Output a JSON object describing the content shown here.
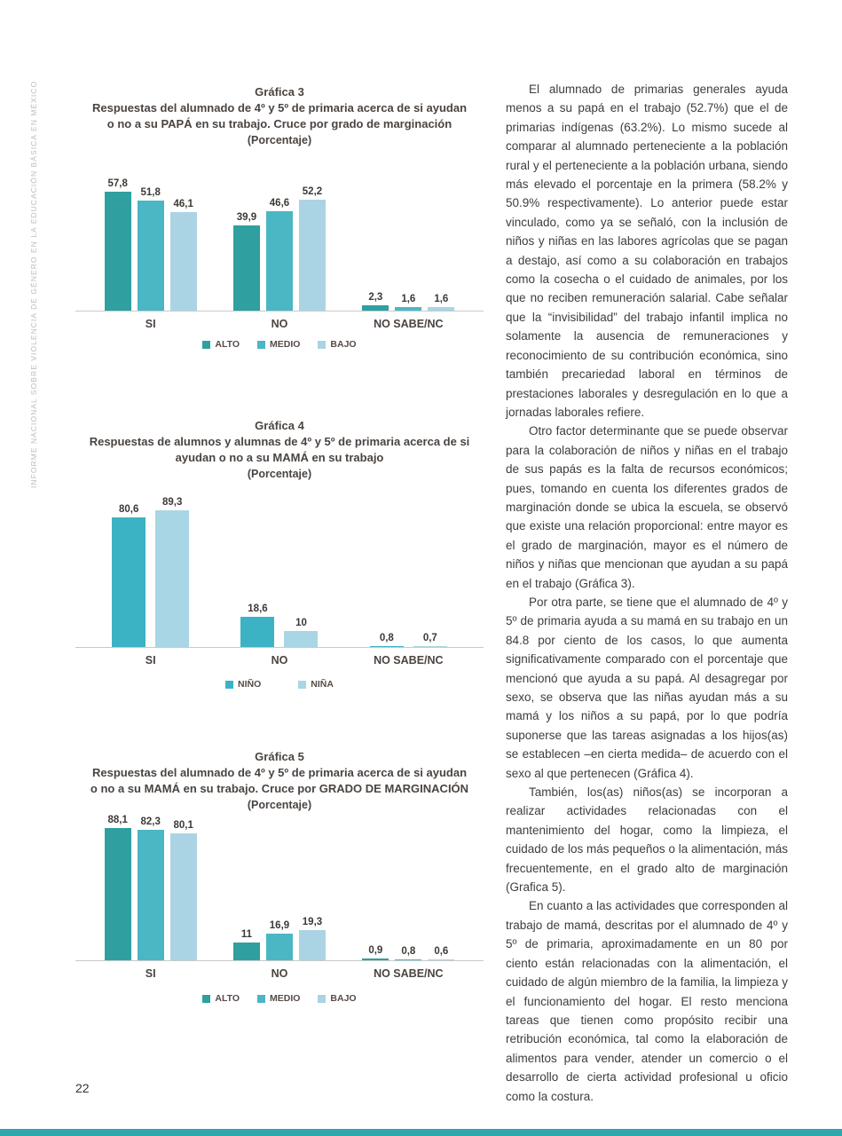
{
  "page": {
    "number": "22"
  },
  "sidebar": {
    "text": "INFORME NACIONAL SOBRE VIOLENCIA DE GÉNERO EN LA EDUCACIÓN BÁSICA EN MÉXICO"
  },
  "footer": {
    "bar_color": "#2fa8ad"
  },
  "chart_data": [
    {
      "type": "bar",
      "caption": "Gráfica 3",
      "title": "Respuestas del alumnado de 4º y 5º de primaria acerca de si ayudan o no a su PAPÁ en su trabajo. Cruce por grado de marginación",
      "subtitle": "(Porcentaje)",
      "categories": [
        "SI",
        "NO",
        "NO SABE/NC"
      ],
      "series": [
        {
          "name": "ALTO",
          "color": "#2f9fa0",
          "values": [
            57.8,
            39.9,
            2.3
          ],
          "labels": [
            "57,8",
            "39,9",
            "2,3"
          ]
        },
        {
          "name": "MEDIO",
          "color": "#4bb6c4",
          "values": [
            51.8,
            46.6,
            1.6
          ],
          "labels": [
            "51,8",
            "46,6",
            "1,6"
          ]
        },
        {
          "name": "BAJO",
          "color": "#aad4e4",
          "values": [
            46.1,
            52.2,
            1.6
          ],
          "labels": [
            "46,1",
            "52,2",
            "1,6"
          ]
        }
      ],
      "ylim": [
        0,
        62
      ],
      "grid": false,
      "legend_position": "bottom"
    },
    {
      "type": "bar",
      "caption": "Gráfica 4",
      "title": "Respuestas de alumnos y alumnas de 4º y 5º de primaria acerca de si ayudan o no a su MAMÁ en su trabajo",
      "subtitle": "(Porcentaje)",
      "categories": [
        "SI",
        "NO",
        "NO SABE/NC"
      ],
      "series": [
        {
          "name": "NIÑO",
          "color": "#3cb3c4",
          "values": [
            80.6,
            18.6,
            0.8
          ],
          "labels": [
            "80,6",
            "18,6",
            "0,8"
          ]
        },
        {
          "name": "NIÑA",
          "color": "#a8d6e4",
          "values": [
            89.3,
            10,
            0.7
          ],
          "labels": [
            "89,3",
            "10",
            "0,7"
          ]
        }
      ],
      "ylim": [
        0,
        93
      ],
      "grid": false,
      "legend_position": "bottom"
    },
    {
      "type": "bar",
      "caption": "Gráfica 5",
      "title": "Respuestas del alumnado de 4º y 5º de primaria acerca de si ayudan o no a su MAMÁ en su trabajo. Cruce por GRADO DE MARGINACIÓN",
      "subtitle": "(Porcentaje)",
      "categories": [
        "SI",
        "NO",
        "NO SABE/NC"
      ],
      "series": [
        {
          "name": "ALTO",
          "color": "#2f9fa0",
          "values": [
            88.1,
            11,
            0.9
          ],
          "labels": [
            "88,1",
            "11",
            "0,9"
          ]
        },
        {
          "name": "MEDIO",
          "color": "#4bb6c4",
          "values": [
            82.3,
            16.9,
            0.8
          ],
          "labels": [
            "82,3",
            "16,9",
            "0,8"
          ]
        },
        {
          "name": "BAJO",
          "color": "#aad4e4",
          "values": [
            80.1,
            19.3,
            0.6
          ],
          "labels": [
            "80,1",
            "19,3",
            "0,6"
          ]
        }
      ],
      "ylim": [
        0,
        92
      ],
      "grid": false,
      "legend_position": "bottom"
    }
  ],
  "article": {
    "paragraphs": [
      "El alumnado de primarias generales ayuda menos a su papá en el trabajo (52.7%) que el de primarias indígenas (63.2%). Lo mismo sucede al comparar al alumnado perteneciente a la población rural y el perteneciente a la población urbana, siendo más elevado el porcentaje en la primera (58.2% y 50.9% respectivamente). Lo anterior puede estar vinculado, como ya se señaló, con la inclusión de niños y niñas en las labores agrícolas que se pagan a destajo, así como a su colaboración en trabajos como la cosecha o el cuidado de animales, por los que no reciben remuneración salarial. Cabe señalar que la “invisibilidad” del trabajo infantil implica no solamente la ausencia de remuneraciones y reconocimiento de su contribución económica, sino también precariedad laboral en términos de prestaciones laborales y desregulación en lo que a jornadas laborales refiere.",
      "Otro factor determinante que se puede observar para la colaboración de niños y niñas en el trabajo de sus papás es la falta de recursos económicos; pues, tomando en cuenta los diferentes grados de marginación donde se ubica la escuela, se observó que existe una relación proporcional: entre mayor es el grado de marginación, mayor es el número de niños y niñas que mencionan que ayudan a su papá en el trabajo (Gráfica 3).",
      "Por otra parte, se tiene que el alumnado de 4º y 5º de primaria ayuda a su mamá en su trabajo en un 84.8 por ciento de los casos, lo que aumenta significativamente comparado con el porcentaje que mencionó que ayuda a su papá. Al desagregar por sexo, se observa que las niñas ayudan más a su mamá y los niños a su papá, por lo que podría suponerse que las tareas asignadas a los hijos(as) se establecen –en cierta medida– de acuerdo con el sexo al que pertenecen (Gráfica 4).",
      "También, los(as) niños(as) se incorporan a realizar actividades relacionadas con el mantenimiento del hogar, como la limpieza, el cuidado de los más pequeños o la alimentación, más frecuentemente, en el grado alto de marginación (Grafica 5).",
      "En cuanto a las actividades que corresponden al trabajo de mamá, descritas por el alumnado de 4º y 5º de primaria, aproximadamente en un 80 por ciento están relacionadas con la alimentación, el cuidado de algún miembro de la familia, la limpieza y el funcionamiento del hogar. El resto menciona tareas que tienen como propósito recibir una retribución económica, tal como la elaboración de alimentos para vender, atender un comercio o el desarrollo de cierta actividad profesional u oficio como la costura."
    ]
  }
}
